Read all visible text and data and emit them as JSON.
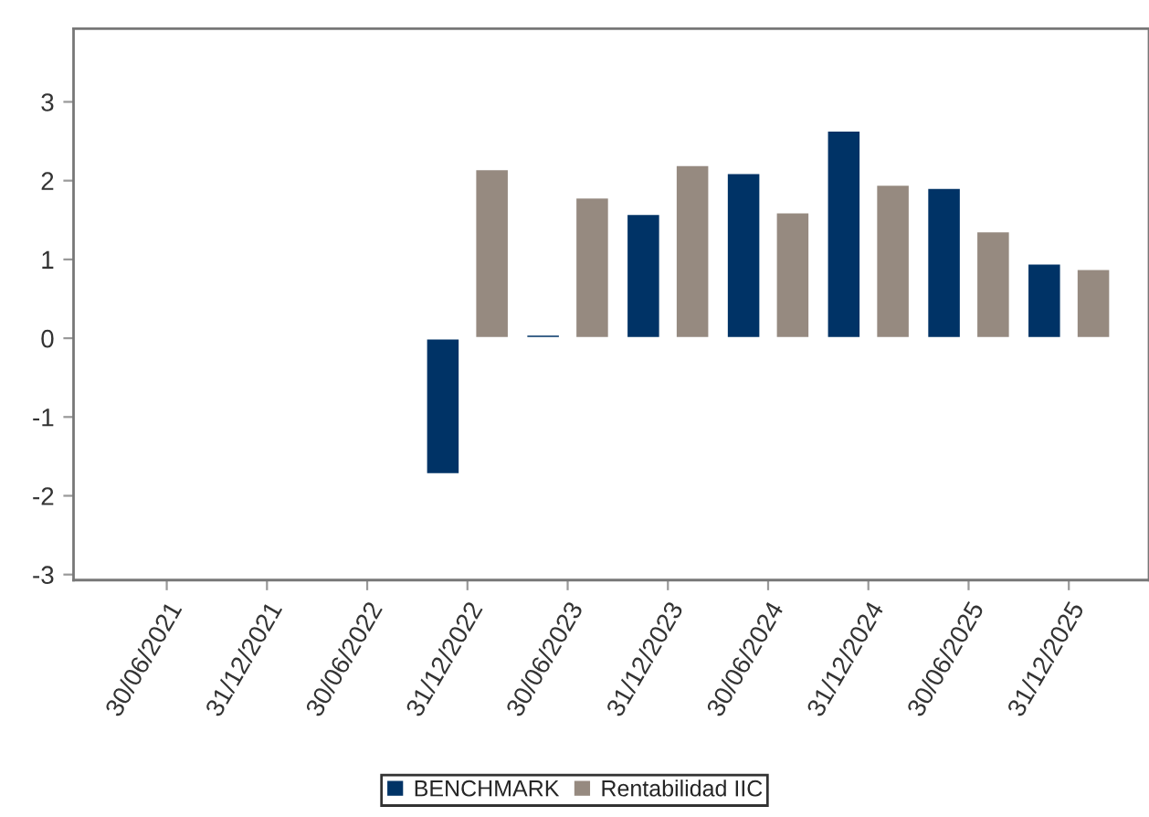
{
  "chart_data": {
    "type": "bar",
    "categories": [
      "30/06/2021",
      "31/12/2021",
      "30/06/2022",
      "31/12/2022",
      "30/06/2023",
      "31/12/2023",
      "30/06/2024",
      "31/12/2024",
      "30/06/2025",
      "31/12/2025"
    ],
    "series": [
      {
        "name": "BENCHMARK",
        "color": "#003366",
        "values": [
          null,
          null,
          null,
          -1.73,
          0.05,
          1.58,
          2.1,
          2.64,
          1.91,
          0.95
        ]
      },
      {
        "name": "Rentabilidad IIC",
        "color": "#968a80",
        "values": [
          null,
          null,
          null,
          2.15,
          1.79,
          2.2,
          1.6,
          1.95,
          1.36,
          0.88
        ]
      }
    ],
    "ylim": [
      -3.07,
      3.93
    ],
    "yticks": [
      -3,
      -2,
      -1,
      0,
      1,
      2,
      3
    ],
    "grid": false,
    "legend": "bottom"
  }
}
